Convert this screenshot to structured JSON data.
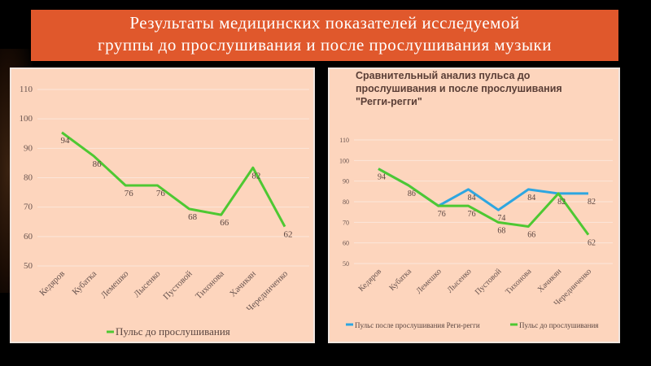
{
  "title": {
    "line1": "Результаты медицинских показателей  исследуемой",
    "line2": "группы до прослушивания и после прослушивания музыки"
  },
  "chart_data": [
    {
      "type": "line",
      "title": "",
      "categories": [
        "Кедяров",
        "Кубатка",
        "Лемешко",
        "Лысенко",
        "Пустовой",
        "Тихонова",
        "Хачикян",
        "Чередниченко"
      ],
      "series": [
        {
          "name": "Пульс до прослушивания",
          "color": "#4ec832",
          "values": [
            94,
            86,
            76,
            76,
            68,
            66,
            82,
            62
          ]
        }
      ],
      "yticks": [
        50,
        60,
        70,
        80,
        90,
        100,
        110
      ],
      "ylim": [
        50,
        110
      ],
      "legend": "bottom",
      "grid": true
    },
    {
      "type": "line",
      "title": "Сравнительный  анализ пульса до прослушивания и после прослушивания \"Регги-регги\"",
      "title_lines": [
        "Сравнительный  анализ пульса до",
        "прослушивания и после прослушивания",
        "\"Регги-регги\""
      ],
      "categories": [
        "Кедяров",
        "Кубатка",
        "Лемешко",
        "Лысенко",
        "Пустовой",
        "Тихонова",
        "Хачикян",
        "Чередниченко"
      ],
      "series": [
        {
          "name": "Пульс после прослушивания Реги-регги",
          "color": "#2ea6e0",
          "values": [
            94,
            86,
            76,
            84,
            74,
            84,
            82,
            82
          ]
        },
        {
          "name": "Пульс до прослушивания",
          "color": "#4ec832",
          "values": [
            94,
            86,
            76,
            76,
            68,
            66,
            82,
            62
          ]
        }
      ],
      "yticks": [
        50,
        60,
        70,
        80,
        90,
        100,
        110
      ],
      "ylim": [
        50,
        110
      ],
      "legend": "bottom",
      "grid": true
    }
  ]
}
